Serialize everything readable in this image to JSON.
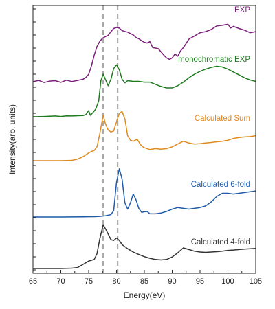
{
  "chart_data": {
    "type": "line",
    "xlabel": "Energy(eV)",
    "ylabel": "Intensity(arb. units)",
    "xlim": [
      65,
      105
    ],
    "x_ticks": [
      65,
      70,
      75,
      80,
      85,
      90,
      95,
      100,
      105
    ],
    "y_ticks_count": 21,
    "y_units": "arb. units",
    "y_tick_labels": false,
    "grid": false,
    "legend": "none",
    "reference_lines": [
      {
        "x": 77.6,
        "color": "#aaaaaa",
        "style": "dashed"
      },
      {
        "x": 80.2,
        "color": "#aaaaaa",
        "style": "dashed"
      }
    ],
    "series": [
      {
        "name": "EXP",
        "color": "#7a1f7a",
        "points": [
          [
            65,
            0
          ],
          [
            66,
            0.06
          ],
          [
            67,
            -0.04
          ],
          [
            68,
            0.03
          ],
          [
            69,
            0.05
          ],
          [
            70,
            -0.03
          ],
          [
            71,
            0.07
          ],
          [
            72,
            0.01
          ],
          [
            73,
            0.06
          ],
          [
            74,
            0.12
          ],
          [
            74.5,
            0.2
          ],
          [
            75,
            0.35
          ],
          [
            75.5,
            0.75
          ],
          [
            76,
            1.25
          ],
          [
            76.5,
            1.65
          ],
          [
            77,
            1.9
          ],
          [
            77.5,
            2.05
          ],
          [
            78,
            2.12
          ],
          [
            78.5,
            2.18
          ],
          [
            79,
            2.35
          ],
          [
            79.5,
            2.5
          ],
          [
            80,
            2.55
          ],
          [
            80.5,
            2.52
          ],
          [
            81,
            2.4
          ],
          [
            81.5,
            2.36
          ],
          [
            82,
            2.33
          ],
          [
            82.5,
            2.26
          ],
          [
            83,
            2.2
          ],
          [
            83.5,
            2.08
          ],
          [
            84,
            2.02
          ],
          [
            84.5,
            1.93
          ],
          [
            85,
            1.85
          ],
          [
            85.5,
            1.82
          ],
          [
            86,
            1.88
          ],
          [
            86.5,
            1.6
          ],
          [
            87,
            1.58
          ],
          [
            87.5,
            1.55
          ],
          [
            88,
            1.4
          ],
          [
            88.5,
            1.25
          ],
          [
            89,
            1.12
          ],
          [
            89.5,
            1.05
          ],
          [
            90,
            1.12
          ],
          [
            90.5,
            1.3
          ],
          [
            91,
            1.2
          ],
          [
            91.5,
            1.45
          ],
          [
            92,
            1.6
          ],
          [
            92.5,
            1.8
          ],
          [
            93,
            2.0
          ],
          [
            94,
            2.15
          ],
          [
            95,
            2.3
          ],
          [
            96,
            2.35
          ],
          [
            97,
            2.45
          ],
          [
            98,
            2.62
          ],
          [
            99,
            2.65
          ],
          [
            100,
            2.7
          ],
          [
            100.5,
            2.52
          ],
          [
            101,
            2.6
          ],
          [
            102,
            2.5
          ],
          [
            103,
            2.42
          ],
          [
            104,
            2.3
          ],
          [
            105,
            2.35
          ]
        ]
      },
      {
        "name": "monochromatic EXP",
        "color": "#1e7a1e",
        "points": [
          [
            65,
            0
          ],
          [
            67,
            0.02
          ],
          [
            69,
            0.05
          ],
          [
            70,
            0.02
          ],
          [
            71,
            0.06
          ],
          [
            72,
            0.05
          ],
          [
            73,
            0.07
          ],
          [
            74,
            0.08
          ],
          [
            74.5,
            0.15
          ],
          [
            75,
            0.42
          ],
          [
            75.3,
            0.1
          ],
          [
            75.8,
            0.3
          ],
          [
            76.3,
            0.55
          ],
          [
            76.8,
            1.1
          ],
          [
            77.2,
            2.5
          ],
          [
            77.6,
            2.95
          ],
          [
            78,
            2.6
          ],
          [
            78.5,
            2.15
          ],
          [
            79,
            2.6
          ],
          [
            79.5,
            3.35
          ],
          [
            80,
            3.6
          ],
          [
            80.5,
            3.25
          ],
          [
            81,
            2.6
          ],
          [
            81.5,
            2.35
          ],
          [
            82,
            2.5
          ],
          [
            83,
            2.45
          ],
          [
            84,
            2.45
          ],
          [
            85,
            2.4
          ],
          [
            86,
            2.4
          ],
          [
            87,
            2.25
          ],
          [
            88,
            2.1
          ],
          [
            89,
            2.0
          ],
          [
            90,
            2.0
          ],
          [
            91,
            2.15
          ],
          [
            92,
            2.4
          ],
          [
            93,
            2.7
          ],
          [
            94,
            2.95
          ],
          [
            95,
            3.15
          ],
          [
            96,
            3.3
          ],
          [
            97,
            3.42
          ],
          [
            98,
            3.5
          ],
          [
            99,
            3.45
          ],
          [
            100,
            3.3
          ],
          [
            101,
            3.1
          ],
          [
            102,
            2.9
          ],
          [
            103,
            2.7
          ],
          [
            104,
            2.55
          ],
          [
            105,
            2.45
          ]
        ]
      },
      {
        "name": "Calculated Sum",
        "color": "#e08a1e",
        "points": [
          [
            65,
            0
          ],
          [
            70,
            0
          ],
          [
            72,
            0.02
          ],
          [
            73,
            0.08
          ],
          [
            74,
            0.22
          ],
          [
            75,
            0.42
          ],
          [
            75.5,
            0.5
          ],
          [
            76,
            0.55
          ],
          [
            76.5,
            0.75
          ],
          [
            77,
            1.45
          ],
          [
            77.6,
            2.45
          ],
          [
            78,
            2.0
          ],
          [
            78.5,
            1.65
          ],
          [
            79,
            1.55
          ],
          [
            79.5,
            1.6
          ],
          [
            80,
            2.1
          ],
          [
            80.5,
            2.55
          ],
          [
            81,
            2.65
          ],
          [
            81.5,
            2.25
          ],
          [
            82,
            1.35
          ],
          [
            82.5,
            1.1
          ],
          [
            83,
            1.05
          ],
          [
            83.7,
            1.15
          ],
          [
            84.5,
            0.8
          ],
          [
            85,
            0.7
          ],
          [
            86,
            0.6
          ],
          [
            87,
            0.65
          ],
          [
            88,
            0.62
          ],
          [
            89,
            0.65
          ],
          [
            90,
            0.75
          ],
          [
            91,
            0.9
          ],
          [
            92,
            1.05
          ],
          [
            93,
            0.95
          ],
          [
            94,
            0.9
          ],
          [
            95,
            0.92
          ],
          [
            96,
            0.95
          ],
          [
            97,
            0.98
          ],
          [
            98,
            1.02
          ],
          [
            99,
            1.05
          ],
          [
            100,
            1.1
          ],
          [
            101,
            1.2
          ],
          [
            102,
            1.25
          ],
          [
            103,
            1.28
          ],
          [
            104,
            1.3
          ],
          [
            105,
            1.35
          ]
        ]
      },
      {
        "name": "Calculated 6-fold",
        "color": "#1e5aa8",
        "points": [
          [
            65,
            0
          ],
          [
            70,
            0
          ],
          [
            74,
            0.01
          ],
          [
            76,
            0.02
          ],
          [
            77,
            0.04
          ],
          [
            78,
            0.08
          ],
          [
            79,
            0.15
          ],
          [
            79.5,
            0.4
          ],
          [
            80,
            2.2
          ],
          [
            80.5,
            3.05
          ],
          [
            81,
            2.4
          ],
          [
            81.5,
            0.9
          ],
          [
            82,
            0.5
          ],
          [
            82.5,
            0.9
          ],
          [
            83,
            1.45
          ],
          [
            83.5,
            1.1
          ],
          [
            84,
            0.55
          ],
          [
            84.5,
            0.3
          ],
          [
            85.5,
            0.35
          ],
          [
            86,
            0.2
          ],
          [
            87,
            0.2
          ],
          [
            88,
            0.25
          ],
          [
            89,
            0.35
          ],
          [
            90,
            0.5
          ],
          [
            91,
            0.6
          ],
          [
            92,
            0.55
          ],
          [
            93,
            0.5
          ],
          [
            94,
            0.55
          ],
          [
            95,
            0.6
          ],
          [
            96,
            0.7
          ],
          [
            97,
            0.95
          ],
          [
            98,
            1.3
          ],
          [
            99,
            1.5
          ],
          [
            100,
            1.5
          ],
          [
            101,
            1.45
          ],
          [
            102,
            1.5
          ],
          [
            103,
            1.55
          ],
          [
            104,
            1.6
          ],
          [
            105,
            1.65
          ]
        ]
      },
      {
        "name": "Calculated 4-fold",
        "color": "#333333",
        "points": [
          [
            65,
            0
          ],
          [
            70,
            0
          ],
          [
            72,
            0.02
          ],
          [
            73,
            0.06
          ],
          [
            74,
            0.25
          ],
          [
            75,
            0.45
          ],
          [
            75.5,
            0.5
          ],
          [
            76,
            0.55
          ],
          [
            76.5,
            0.9
          ],
          [
            77,
            1.8
          ],
          [
            77.6,
            2.65
          ],
          [
            78.2,
            2.3
          ],
          [
            79,
            1.75
          ],
          [
            79.5,
            1.7
          ],
          [
            80,
            1.85
          ],
          [
            80.5,
            1.7
          ],
          [
            81,
            1.45
          ],
          [
            82,
            1.2
          ],
          [
            83,
            1.0
          ],
          [
            84,
            0.85
          ],
          [
            85,
            0.72
          ],
          [
            86,
            0.62
          ],
          [
            87,
            0.55
          ],
          [
            88,
            0.52
          ],
          [
            89,
            0.55
          ],
          [
            90,
            0.7
          ],
          [
            91,
            0.95
          ],
          [
            92,
            1.25
          ],
          [
            93,
            1.15
          ],
          [
            94,
            1.05
          ],
          [
            95,
            1.0
          ],
          [
            96,
            0.98
          ],
          [
            97,
            1.0
          ],
          [
            98,
            1.02
          ],
          [
            99,
            1.05
          ],
          [
            100,
            1.1
          ],
          [
            101,
            1.12
          ],
          [
            102,
            1.15
          ],
          [
            103,
            1.18
          ],
          [
            104,
            1.2
          ],
          [
            105,
            1.22
          ]
        ]
      }
    ]
  }
}
